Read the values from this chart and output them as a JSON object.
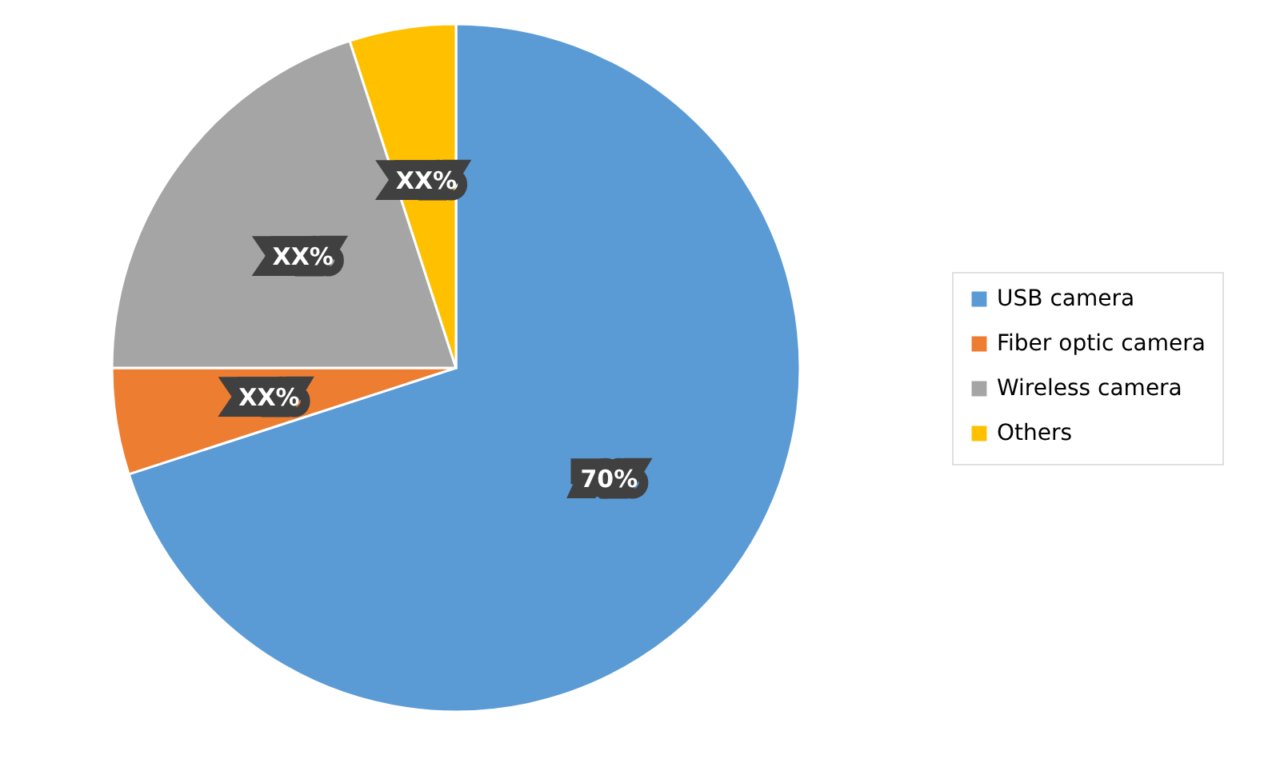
{
  "chart_data": {
    "type": "pie",
    "categories": [
      "USB camera",
      "Fiber optic camera",
      "Wireless camera",
      "Others"
    ],
    "values": [
      70,
      5,
      20,
      5
    ],
    "colors": [
      "#5b9bd5",
      "#ed7d31",
      "#a5a5a5",
      "#ffc000"
    ],
    "value_labels": [
      "70%",
      "XX%",
      "XX%",
      "XX%"
    ],
    "legend": "right"
  }
}
